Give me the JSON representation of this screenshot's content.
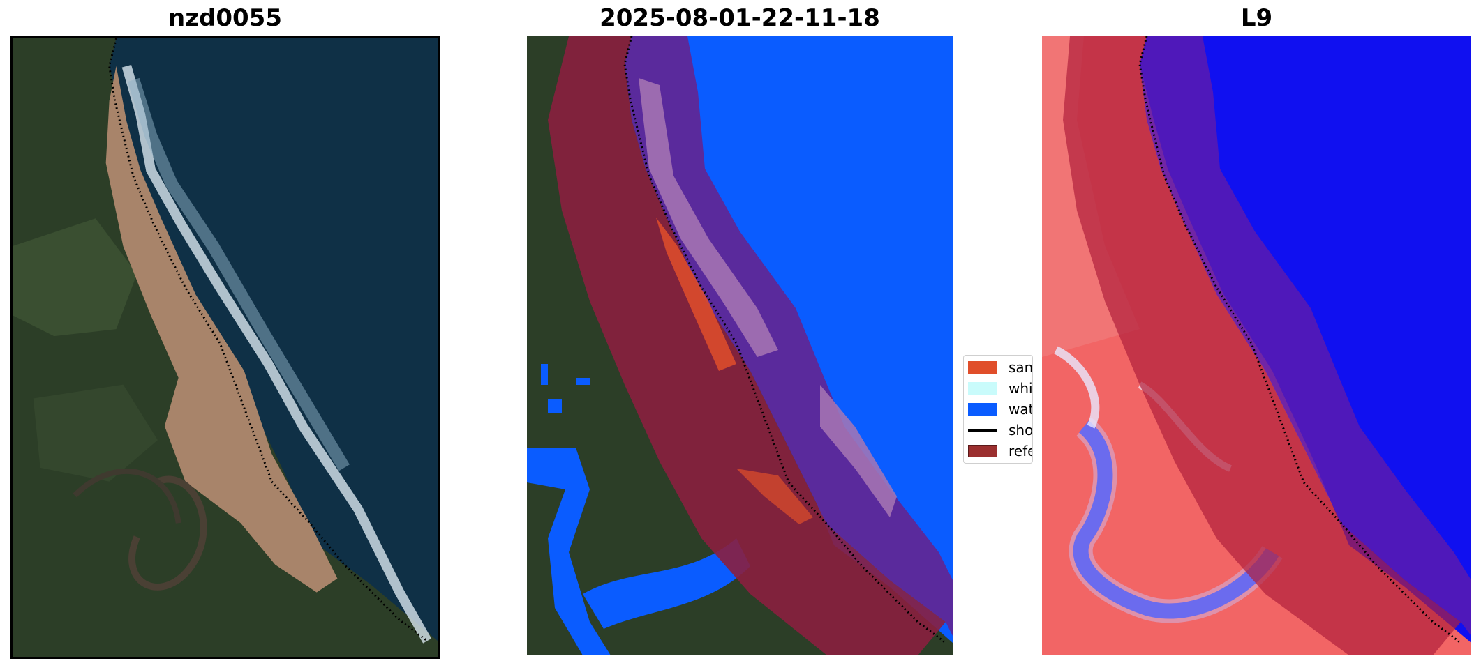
{
  "panels": {
    "rgb": {
      "title": "nzd0055"
    },
    "classification": {
      "title": "2025-08-01-22-11-18"
    },
    "index": {
      "title": "L9"
    }
  },
  "legend": {
    "items": [
      {
        "label": "sand",
        "color": "#e04e2a",
        "icon": "patch"
      },
      {
        "label": "whit",
        "color": "#c9fbfb",
        "icon": "patch"
      },
      {
        "label": "wate",
        "color": "#0a5cff",
        "icon": "patch"
      },
      {
        "label": "shor",
        "color": "#000000",
        "icon": "line"
      },
      {
        "label": "refe",
        "color": "#9b2f2f",
        "icon": "patch"
      }
    ]
  },
  "colors": {
    "ocean": "#0f3046",
    "vegetation": "#2c3e27",
    "beach": "#a8846a",
    "surf": "#d8e6ee",
    "water_class": "#0a5cff",
    "sand_class": "#e04e2a",
    "buffer_red": "#8a1f3f",
    "buffer_purple": "#5a2a9c",
    "index_red": "#f26565",
    "index_blue": "#1010f0"
  }
}
